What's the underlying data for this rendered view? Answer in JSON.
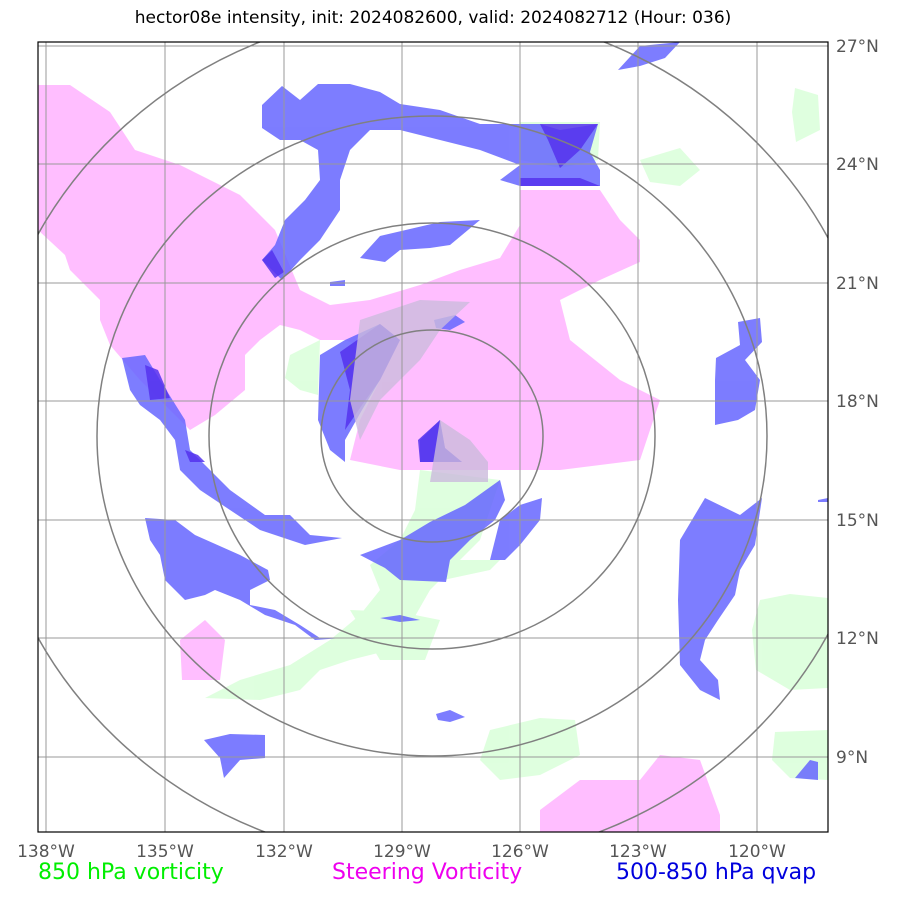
{
  "title": "hector08e intensity, init: 2024082600, valid: 2024082712 (Hour: 036)",
  "lon_ticks": [
    "138°W",
    "135°W",
    "132°W",
    "129°W",
    "126°W",
    "123°W",
    "120°W"
  ],
  "lat_ticks": [
    "27°N",
    "24°N",
    "21°N",
    "18°N",
    "15°N",
    "12°N",
    "9°N"
  ],
  "legend": {
    "vort850": "850 hPa vorticity",
    "steering": "Steering Vorticity",
    "qvap": "500-850 hPa qvap"
  },
  "colors": {
    "vort850": "#ddffdd",
    "steering": "#ffbbff",
    "qvap": "#6666ff",
    "grid": "#999999",
    "rings": "#808080"
  }
}
